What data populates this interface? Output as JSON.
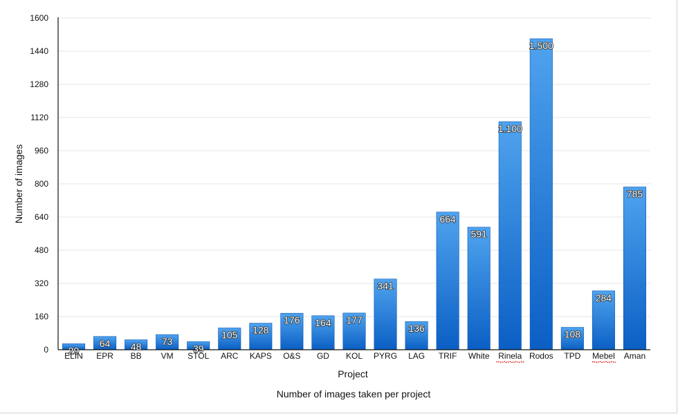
{
  "chart_data": {
    "type": "bar",
    "title": "",
    "caption": "Number of images taken per project",
    "xlabel": "Project",
    "ylabel": "Number of images",
    "ylim": [
      0,
      1600
    ],
    "yticks": [
      0,
      160,
      320,
      480,
      640,
      800,
      960,
      1120,
      1280,
      1440,
      1600
    ],
    "grid": true,
    "legend": "none",
    "bar_color": "#1f7ad8",
    "categories": [
      "ELIN",
      "EPR",
      "BB",
      "VM",
      "STOL",
      "ARC",
      "KAPS",
      "O&S",
      "GD",
      "KOL",
      "PYRG",
      "LAG",
      "TRIF",
      "White",
      "Rinela",
      "Rodos",
      "TPD",
      "Mebel",
      "Aman"
    ],
    "values": [
      29,
      64,
      48,
      73,
      39,
      105,
      128,
      176,
      164,
      177,
      341,
      136,
      664,
      591,
      1100,
      1500,
      108,
      284,
      785
    ],
    "value_labels": [
      "29",
      "64",
      "48",
      "73",
      "39",
      "105",
      "128",
      "176",
      "164",
      "177",
      "341",
      "136",
      "664",
      "591",
      "1.100",
      "1.500",
      "108",
      "284",
      "785"
    ],
    "spellcheck_underlined": [
      "Rinela",
      "Mebel"
    ]
  }
}
